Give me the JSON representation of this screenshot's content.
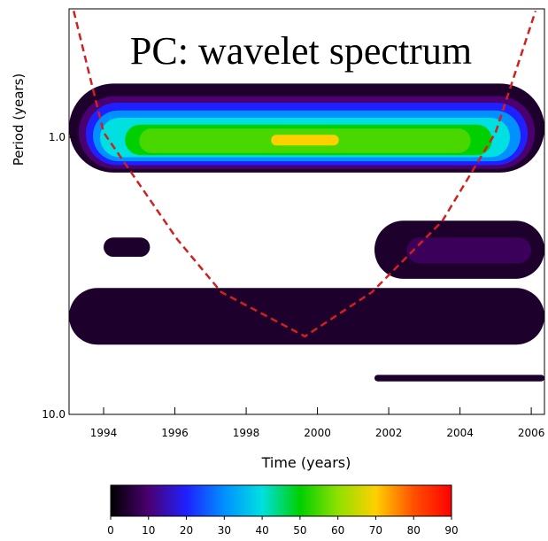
{
  "chart_data": {
    "type": "wavelet",
    "title": "PC: wavelet spectrum",
    "x_label": "Time (years)",
    "y_label": "Period (years)",
    "xlim": [
      1993.03,
      2006.37
    ],
    "xticks": [
      1994,
      1996,
      1998,
      2000,
      2002,
      2004,
      2006
    ],
    "ylim": [
      0.344,
      10
    ],
    "yticks": [
      {
        "value": 1,
        "label": "1.0"
      },
      {
        "value": 10,
        "label": "10.0"
      }
    ],
    "y_log": true,
    "y_inverted": true,
    "regions": [
      {
        "time": [
          1993.03,
          2006.37
        ],
        "period": [
          0.64,
          1.34
        ],
        "level": 4
      },
      {
        "time": [
          1993.3,
          2006.1
        ],
        "period": [
          0.71,
          1.3
        ],
        "level": 10
      },
      {
        "time": [
          1993.5,
          2005.9
        ],
        "period": [
          0.75,
          1.26
        ],
        "level": 20
      },
      {
        "time": [
          1993.7,
          2005.7
        ],
        "period": [
          0.8,
          1.22
        ],
        "level": 30
      },
      {
        "time": [
          1993.9,
          2005.4
        ],
        "period": [
          0.85,
          1.18
        ],
        "level": 40
      },
      {
        "time": [
          1994.6,
          2004.9
        ],
        "period": [
          0.9,
          1.16
        ],
        "level": 50
      },
      {
        "time": [
          1995.0,
          2004.3
        ],
        "period": [
          0.93,
          1.14
        ],
        "level": 55
      },
      {
        "time": [
          1998.7,
          2000.6
        ],
        "period": [
          0.98,
          1.07
        ],
        "level": 70
      },
      {
        "time": [
          1994.0,
          1995.3
        ],
        "period": [
          2.3,
          2.7
        ],
        "level": 4
      },
      {
        "time": [
          2001.6,
          2006.37
        ],
        "period": [
          2.0,
          3.24
        ],
        "level": 4
      },
      {
        "time": [
          2002.5,
          2006.0
        ],
        "period": [
          2.3,
          2.85
        ],
        "level": 8
      },
      {
        "time": [
          1993.03,
          2006.37
        ],
        "period": [
          3.5,
          5.6
        ],
        "level": 4
      },
      {
        "time": [
          2001.6,
          2006.37
        ],
        "period": [
          7.2,
          7.6
        ],
        "level": 4
      }
    ],
    "coi": {
      "color": "#d02020",
      "x": [
        1993.16,
        1994,
        1996.06,
        1997.3,
        1999.65,
        2001.53,
        2003.5,
        2005.0,
        2006.12
      ],
      "y": [
        0.35,
        0.96,
        2.33,
        3.62,
        5.23,
        3.62,
        2.01,
        0.96,
        0.35
      ]
    },
    "colorbar": {
      "ticks": [
        0,
        10,
        20,
        30,
        40,
        50,
        60,
        70,
        80,
        90
      ],
      "colors": [
        "#000000",
        "#4a0070",
        "#2020ff",
        "#0090ff",
        "#00e0e0",
        "#00d000",
        "#90e000",
        "#ffd000",
        "#ff5000",
        "#ff0000"
      ]
    }
  }
}
